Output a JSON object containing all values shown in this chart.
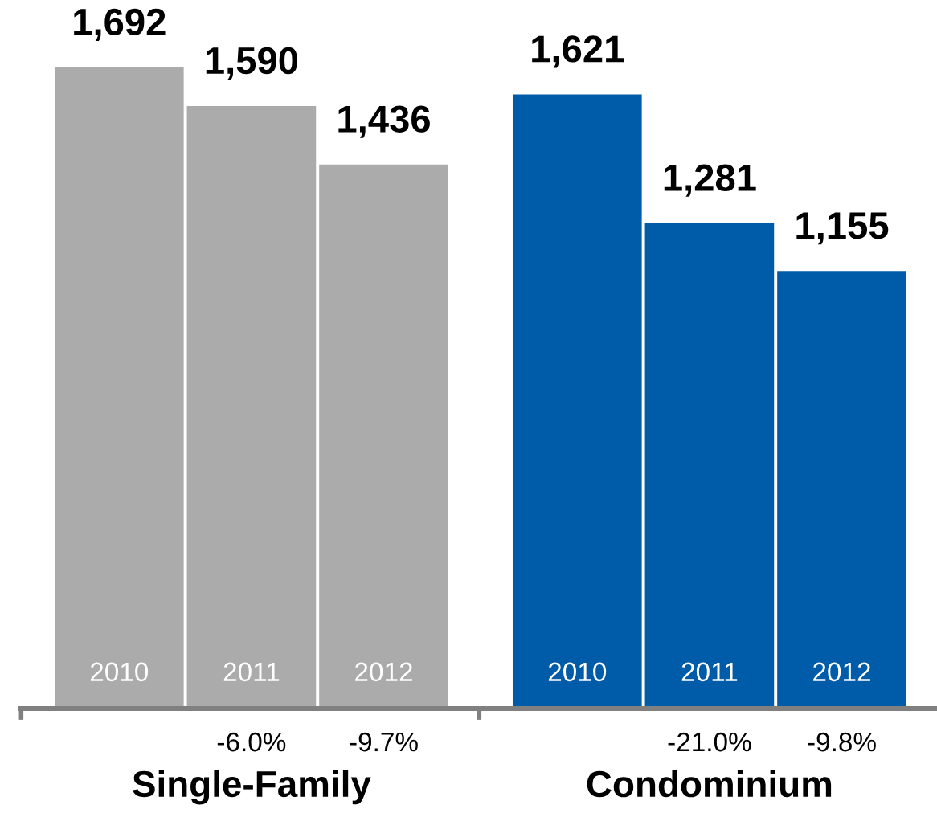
{
  "chart_data": [
    {
      "type": "bar",
      "xlabel": "Single-Family",
      "categories": [
        "2010",
        "2011",
        "2012"
      ],
      "values": [
        1692,
        1590,
        1436
      ],
      "value_labels": [
        "1,692",
        "1,590",
        "1,436"
      ],
      "color": "#ababab",
      "tick_labels": "x",
      "annotations": [
        "-6.0%",
        "-9.7%"
      ]
    },
    {
      "type": "bar",
      "xlabel": "Condominium",
      "categories": [
        "2010",
        "2011",
        "2012"
      ],
      "values": [
        1621,
        1281,
        1155
      ],
      "value_labels": [
        "1,621",
        "1,281",
        "1,155"
      ],
      "color": "#005ca8",
      "tick_labels": "x",
      "annotations": [
        "-21.0%",
        "-9.8%"
      ]
    }
  ]
}
